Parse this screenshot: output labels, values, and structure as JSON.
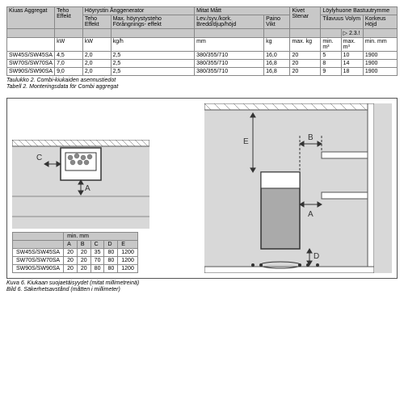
{
  "table1": {
    "headers_row1": [
      "Kiuas\nAggregat",
      "Teho\nEffekt",
      "Höyrystin\nÅnggenerator",
      "",
      "Mitat\nMått",
      "",
      "Kivet\nStenar",
      "Löylyhuone\nBastuutrymme",
      "",
      ""
    ],
    "headers_row2": [
      "",
      "",
      "Teho\nEffekt",
      "Max.\nhöyrystysteho\nFörångnings-\neffekt",
      "Lev./syv./kork.\nBredd/djup/höjd",
      "Paino\nVikt",
      "",
      "Tilavuus\nVolym",
      "",
      "Korkeus\nHöjd"
    ],
    "headers_row3": [
      "",
      "",
      "",
      "",
      "",
      "",
      "",
      "",
      "▷ 2.3.!",
      ""
    ],
    "units_row": [
      "",
      "kW",
      "kW",
      "kg/h",
      "mm",
      "kg",
      "max. kg",
      "min. m³",
      "max. m³",
      "min. mm"
    ],
    "rows": [
      [
        "SW45S/SW45SA",
        "4,5",
        "2,0",
        "2,5",
        "380/355/710",
        "16,0",
        "20",
        "5",
        "10",
        "1900"
      ],
      [
        "SW70S/SW70SA",
        "7,0",
        "2,0",
        "2,5",
        "380/355/710",
        "16,8",
        "20",
        "8",
        "14",
        "1900"
      ],
      [
        "SW90S/SW90SA",
        "9,0",
        "2,0",
        "2,5",
        "380/355/710",
        "16,8",
        "20",
        "9",
        "18",
        "1900"
      ]
    ],
    "caption_fi": "Taulukko 2. Combi-kiukaiden asennustiedot",
    "caption_sv": "Tabell 2.    Monteringsdata för Combi aggregat"
  },
  "table2": {
    "header_unit": "min. mm",
    "columns": [
      "",
      "A",
      "B",
      "C",
      "D",
      "E"
    ],
    "rows": [
      [
        "SW45S/SW45SA",
        "20",
        "20",
        "35",
        "80",
        "1200"
      ],
      [
        "SW70S/SW70SA",
        "20",
        "20",
        "70",
        "80",
        "1200"
      ],
      [
        "SW90S/SW90SA",
        "20",
        "20",
        "80",
        "80",
        "1200"
      ]
    ]
  },
  "fig_caption_fi": "Kuva 6.    Kiukaan suojaetäisyydet (mitat millimetreinä)",
  "fig_caption_sv": "Bild 6.    Säkerhetsavstånd (måtten i millimeter)",
  "labels": {
    "A": "A",
    "B": "B",
    "C": "C",
    "D": "D",
    "E": "E"
  },
  "colors": {
    "hdr": "#c8c8c8",
    "panel": "#d8d8d8",
    "line": "#555"
  }
}
